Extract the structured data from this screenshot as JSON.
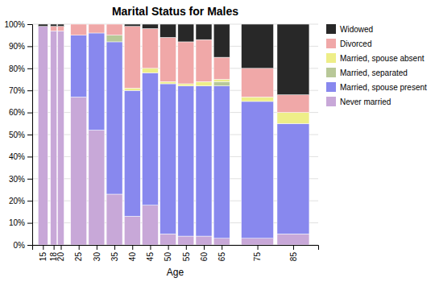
{
  "chart_data": {
    "type": "bar",
    "title": "Marital Status for Males",
    "xlabel": "Age",
    "x": [
      15,
      18,
      20,
      25,
      30,
      35,
      40,
      45,
      50,
      55,
      60,
      65,
      75,
      85
    ],
    "series": [
      {
        "name": "Never married",
        "color": "#c8a8d8",
        "values": [
          99,
          97,
          97,
          67,
          52,
          23,
          13,
          18,
          5,
          4,
          4,
          3,
          3,
          5
        ]
      },
      {
        "name": "Married, spouse present",
        "color": "#8888ee",
        "values": [
          0,
          0,
          0,
          28,
          44,
          69,
          57,
          60,
          68,
          68,
          68,
          69,
          62,
          50
        ]
      },
      {
        "name": "Married, separated",
        "color": "#b8c898",
        "values": [
          0,
          0,
          0,
          0,
          0,
          3,
          0,
          0,
          0,
          0,
          0,
          2,
          0,
          0
        ]
      },
      {
        "name": "Married, spouse absent",
        "color": "#eeee88",
        "values": [
          0,
          0,
          0,
          0,
          0,
          0,
          1,
          2,
          1,
          1,
          2,
          1,
          2,
          5
        ]
      },
      {
        "name": "Divorced",
        "color": "#f0a8a8",
        "values": [
          0,
          2,
          2,
          5,
          4,
          5,
          28,
          18,
          20,
          19,
          19,
          10,
          13,
          8
        ]
      },
      {
        "name": "Widowed",
        "color": "#282828",
        "values": [
          1,
          1,
          1,
          0,
          0,
          0,
          1,
          2,
          6,
          8,
          7,
          15,
          20,
          32
        ]
      }
    ],
    "xlim": [
      12,
      92
    ],
    "xticks": [
      15,
      18,
      20,
      25,
      30,
      35,
      40,
      45,
      50,
      55,
      60,
      65,
      75,
      85
    ],
    "ylim": [
      0,
      100
    ],
    "yticks": [
      {
        "value": 0,
        "label": "0%"
      },
      {
        "value": 10,
        "label": "10%"
      },
      {
        "value": 20,
        "label": "20%"
      },
      {
        "value": 30,
        "label": "30%"
      },
      {
        "value": 40,
        "label": "40%"
      },
      {
        "value": 50,
        "label": "50%"
      },
      {
        "value": 60,
        "label": "60%"
      },
      {
        "value": 70,
        "label": "70%"
      },
      {
        "value": 80,
        "label": "80%"
      },
      {
        "value": 90,
        "label": "90%"
      },
      {
        "value": 100,
        "label": "100%"
      }
    ],
    "stacked": true,
    "grid": true,
    "legend": "right"
  }
}
